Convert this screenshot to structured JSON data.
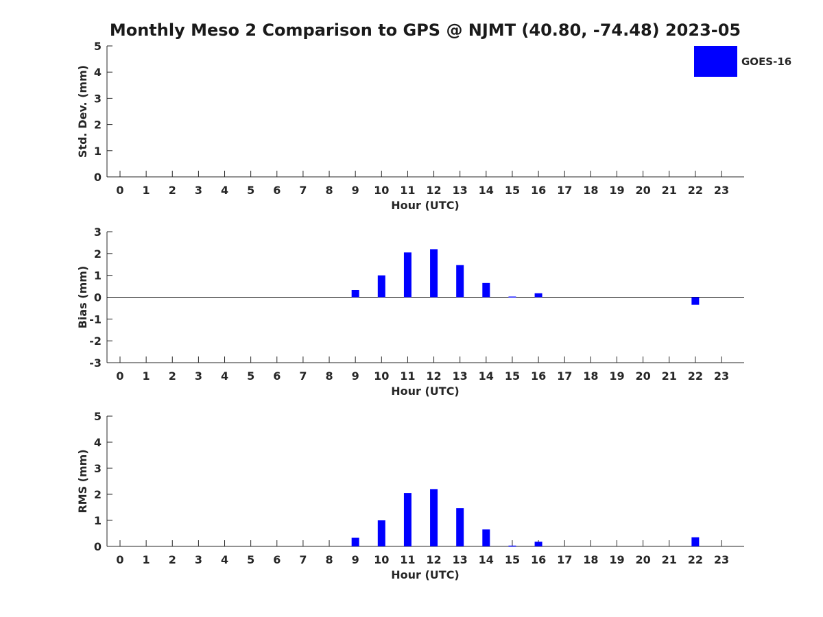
{
  "figure": {
    "title": "Monthly Meso 2 Comparison to GPS @ NJMT (40.80, -74.48) 2023-05",
    "legend": {
      "label": "GOES-16",
      "color": "#0000ff",
      "placement": "top-right"
    }
  },
  "chart_data": [
    {
      "type": "bar",
      "ylabel": "Std. Dev. (mm)",
      "xlabel": "Hour (UTC)",
      "categories": [
        "0",
        "1",
        "2",
        "3",
        "4",
        "5",
        "6",
        "7",
        "8",
        "9",
        "10",
        "11",
        "12",
        "13",
        "14",
        "15",
        "16",
        "17",
        "18",
        "19",
        "20",
        "21",
        "22",
        "23"
      ],
      "ylim": [
        0,
        5
      ],
      "yticks": [
        0,
        1,
        2,
        3,
        4,
        5
      ],
      "zero_line": false,
      "series": [
        {
          "name": "GOES-16",
          "color": "#0000ff",
          "values": [
            null,
            null,
            null,
            null,
            null,
            null,
            null,
            null,
            null,
            null,
            null,
            null,
            null,
            null,
            null,
            null,
            null,
            null,
            null,
            null,
            null,
            null,
            null,
            null
          ]
        }
      ]
    },
    {
      "type": "bar",
      "ylabel": "Bias (mm)",
      "xlabel": "Hour (UTC)",
      "categories": [
        "0",
        "1",
        "2",
        "3",
        "4",
        "5",
        "6",
        "7",
        "8",
        "9",
        "10",
        "11",
        "12",
        "13",
        "14",
        "15",
        "16",
        "17",
        "18",
        "19",
        "20",
        "21",
        "22",
        "23"
      ],
      "ylim": [
        -3,
        3
      ],
      "yticks": [
        -3,
        -2,
        -1,
        0,
        1,
        2,
        3
      ],
      "zero_line": true,
      "series": [
        {
          "name": "GOES-16",
          "color": "#0000ff",
          "values": [
            null,
            null,
            null,
            null,
            null,
            null,
            null,
            null,
            null,
            0.33,
            1.0,
            2.05,
            2.2,
            1.47,
            0.65,
            0.03,
            0.18,
            null,
            null,
            null,
            null,
            null,
            -0.35,
            null
          ]
        }
      ]
    },
    {
      "type": "bar",
      "ylabel": "RMS (mm)",
      "xlabel": "Hour (UTC)",
      "categories": [
        "0",
        "1",
        "2",
        "3",
        "4",
        "5",
        "6",
        "7",
        "8",
        "9",
        "10",
        "11",
        "12",
        "13",
        "14",
        "15",
        "16",
        "17",
        "18",
        "19",
        "20",
        "21",
        "22",
        "23"
      ],
      "ylim": [
        0,
        5
      ],
      "yticks": [
        0,
        1,
        2,
        3,
        4,
        5
      ],
      "zero_line": false,
      "series": [
        {
          "name": "GOES-16",
          "color": "#0000ff",
          "values": [
            null,
            null,
            null,
            null,
            null,
            null,
            null,
            null,
            null,
            0.33,
            1.0,
            2.05,
            2.2,
            1.47,
            0.65,
            0.03,
            0.18,
            null,
            null,
            null,
            null,
            null,
            0.35,
            null
          ]
        }
      ]
    }
  ]
}
